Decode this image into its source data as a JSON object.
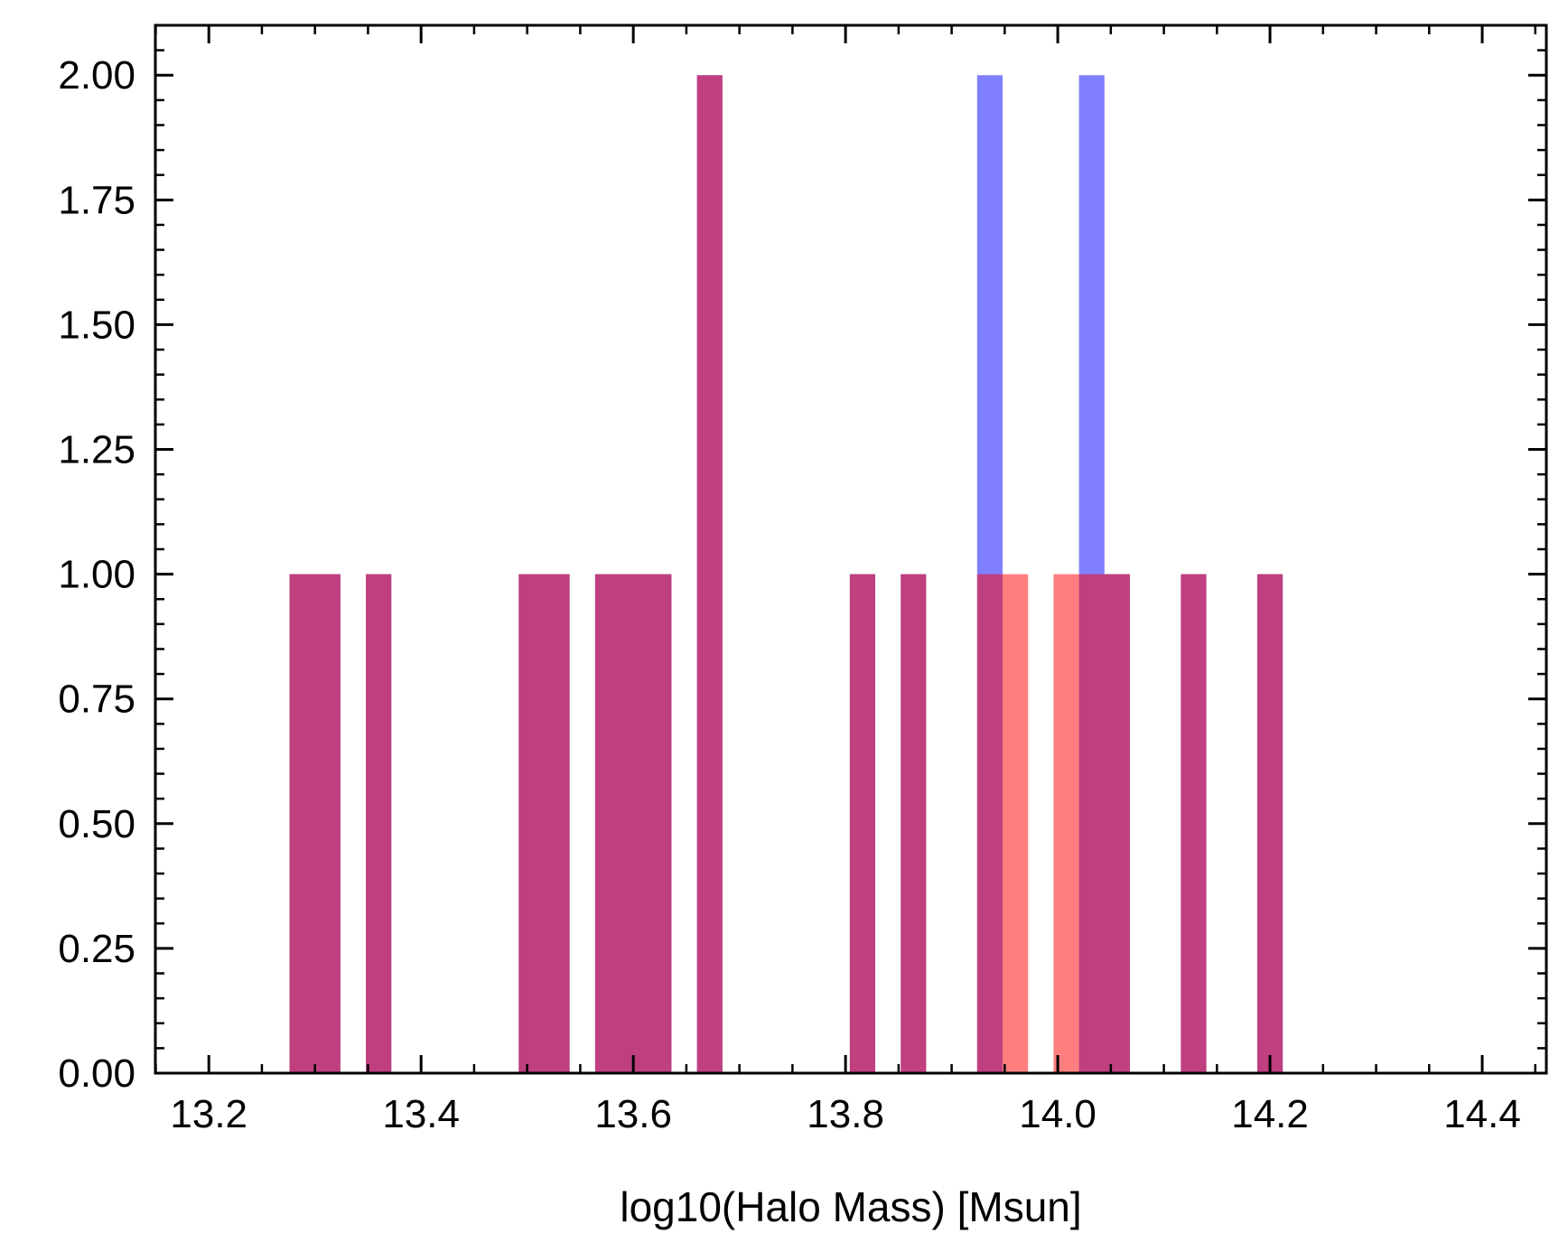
{
  "chart_data": {
    "type": "bar",
    "title": "",
    "xlabel": "log10(Halo Mass) [Msun]",
    "ylabel": "",
    "xlim": [
      13.1496,
      14.4604
    ],
    "ylim": [
      0,
      2.1
    ],
    "x_ticks": [
      13.2,
      13.4,
      13.6,
      13.8,
      14.0,
      14.2,
      14.4
    ],
    "x_tick_labels": [
      "13.2",
      "13.4",
      "13.6",
      "13.8",
      "14.0",
      "14.2",
      "14.4"
    ],
    "y_ticks": [
      0.0,
      0.25,
      0.5,
      0.75,
      1.0,
      1.25,
      1.5,
      1.75,
      2.0
    ],
    "y_tick_labels": [
      "0.00",
      "0.25",
      "0.50",
      "0.75",
      "1.00",
      "1.25",
      "1.50",
      "1.75",
      "2.00"
    ],
    "x_minor_step": 0.05,
    "y_minor_step": 0.05,
    "grid": false,
    "legend": "none",
    "series": [
      {
        "name": "blue",
        "color": "#0000ff",
        "opacity": 0.5,
        "bins": [
          {
            "x0": 13.276,
            "x1": 13.324,
            "count": 1
          },
          {
            "x0": 13.348,
            "x1": 13.372,
            "count": 1
          },
          {
            "x0": 13.492,
            "x1": 13.54,
            "count": 1
          },
          {
            "x0": 13.564,
            "x1": 13.636,
            "count": 1
          },
          {
            "x0": 13.66,
            "x1": 13.684,
            "count": 2
          },
          {
            "x0": 13.804,
            "x1": 13.828,
            "count": 1
          },
          {
            "x0": 13.852,
            "x1": 13.876,
            "count": 1
          },
          {
            "x0": 13.924,
            "x1": 13.948,
            "count": 2
          },
          {
            "x0": 14.02,
            "x1": 14.044,
            "count": 2
          },
          {
            "x0": 14.044,
            "x1": 14.068,
            "count": 1
          },
          {
            "x0": 14.116,
            "x1": 14.14,
            "count": 1
          },
          {
            "x0": 14.188,
            "x1": 14.212,
            "count": 1
          }
        ]
      },
      {
        "name": "red",
        "color": "#ff0000",
        "opacity": 0.5,
        "bins": [
          {
            "x0": 13.276,
            "x1": 13.324,
            "count": 1
          },
          {
            "x0": 13.348,
            "x1": 13.372,
            "count": 1
          },
          {
            "x0": 13.492,
            "x1": 13.54,
            "count": 1
          },
          {
            "x0": 13.564,
            "x1": 13.636,
            "count": 1
          },
          {
            "x0": 13.66,
            "x1": 13.684,
            "count": 2
          },
          {
            "x0": 13.804,
            "x1": 13.828,
            "count": 1
          },
          {
            "x0": 13.852,
            "x1": 13.876,
            "count": 1
          },
          {
            "x0": 13.924,
            "x1": 13.948,
            "count": 1
          },
          {
            "x0": 13.948,
            "x1": 13.972,
            "count": 1
          },
          {
            "x0": 13.996,
            "x1": 14.02,
            "count": 1
          },
          {
            "x0": 14.02,
            "x1": 14.068,
            "count": 1
          },
          {
            "x0": 14.116,
            "x1": 14.14,
            "count": 1
          },
          {
            "x0": 14.188,
            "x1": 14.212,
            "count": 1
          }
        ]
      }
    ]
  }
}
